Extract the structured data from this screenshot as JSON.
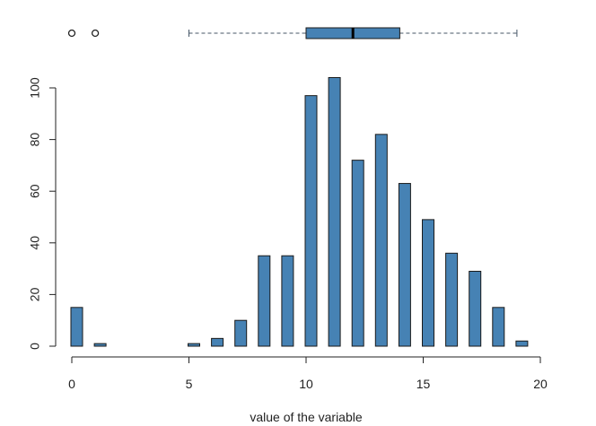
{
  "chart_data": {
    "type": "bar",
    "xlabel": "value of the variable",
    "ylabel": "",
    "xlim": [
      0,
      20
    ],
    "ylim": [
      0,
      104
    ],
    "x_ticks": [
      "0",
      "5",
      "10",
      "15",
      "20"
    ],
    "y_ticks": [
      "0",
      "20",
      "40",
      "60",
      "80",
      "100"
    ],
    "grid": false,
    "bar_color": "#4682B4",
    "series": [
      {
        "x": [
          0,
          1,
          2,
          3,
          4,
          5,
          6,
          7,
          8,
          9,
          10,
          11,
          12,
          13,
          14,
          15,
          16,
          17,
          18,
          19
        ],
        "values": [
          15,
          1,
          0,
          0,
          0,
          1,
          3,
          10,
          35,
          35,
          97,
          104,
          72,
          82,
          63,
          49,
          36,
          29,
          15,
          2
        ]
      }
    ],
    "boxplot": {
      "whisker_low": 5,
      "q1": 10,
      "median": 12,
      "q3": 14,
      "whisker_high": 19,
      "outliers": [
        0,
        1
      ],
      "box_color": "#4682B4"
    }
  }
}
